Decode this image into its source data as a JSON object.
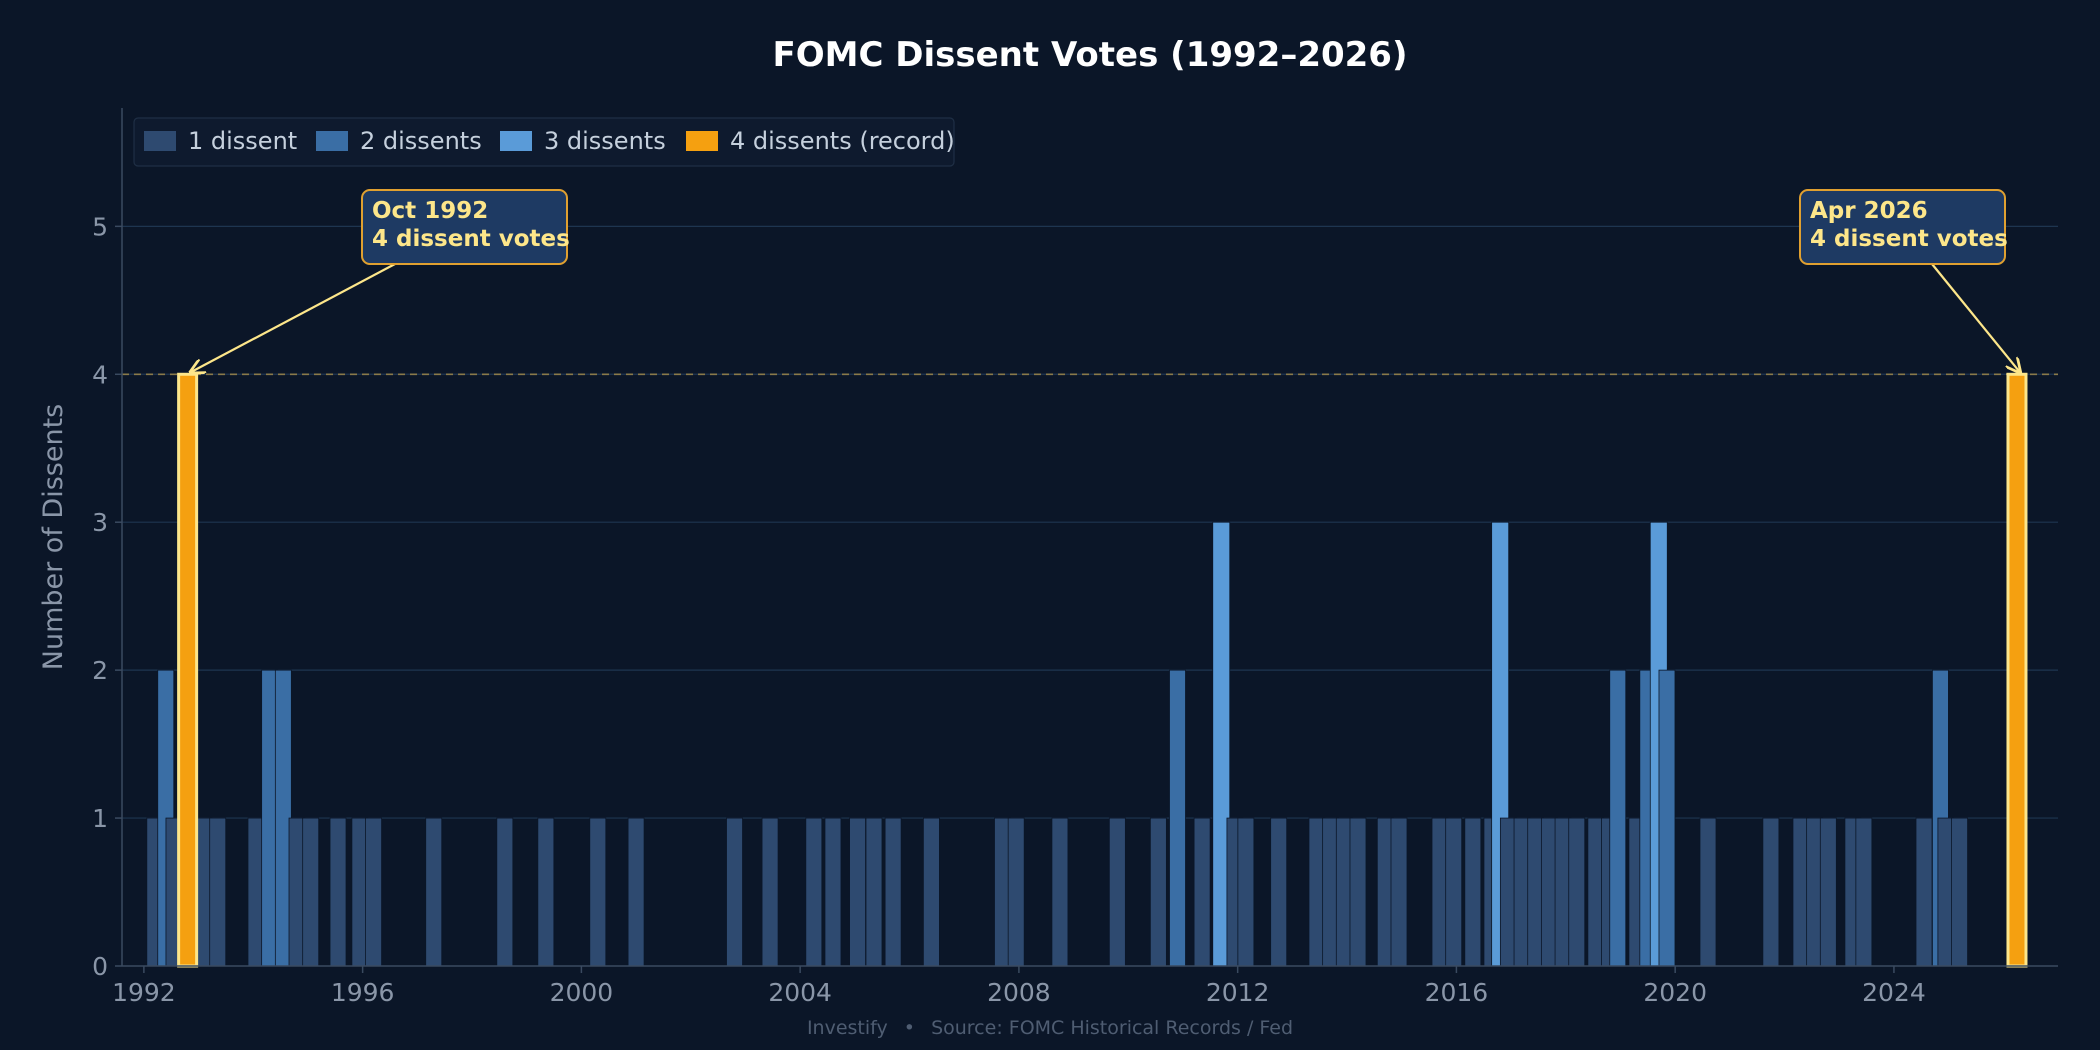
{
  "colors": {
    "background": "#0b1628",
    "one": "#2e4a70",
    "two": "#3a6ea5",
    "three": "#5a9bd8",
    "four": "#f5a010",
    "four_edge": "#fde68a",
    "grid": "#1e3550",
    "text": "#c5d0dd",
    "muted": "#8a96a8",
    "annotation_bg": "#1e3a63",
    "annotation_border": "#e0a030",
    "annotation_text": "#fde68a"
  },
  "chart_data": {
    "type": "bar",
    "title": "FOMC Dissent Votes (1992–2026)",
    "ylabel": "Number of Dissents",
    "xlabel": "",
    "xlim": [
      1991.6,
      2027.0
    ],
    "ylim": [
      0,
      5.8
    ],
    "x_ticks": [
      1992,
      1996,
      2000,
      2004,
      2008,
      2012,
      2016,
      2020,
      2024
    ],
    "x_tick_labels": [
      "1992",
      "1996",
      "2000",
      "2004",
      "2008",
      "2012",
      "2016",
      "2020",
      "2024"
    ],
    "y_ticks": [
      0,
      1,
      2,
      3,
      4,
      5
    ],
    "y_tick_labels": [
      "0",
      "1",
      "2",
      "3",
      "4",
      "5"
    ],
    "grid": true,
    "legend_position": "top-left",
    "legend": [
      "1 dissent",
      "2 dissents",
      "3 dissents",
      "4 dissents (record)"
    ],
    "reference_line": {
      "y": 4,
      "style": "dashed"
    },
    "series": [
      {
        "x": 1992.2,
        "y": 1
      },
      {
        "x": 1992.4,
        "y": 2
      },
      {
        "x": 1992.55,
        "y": 1
      },
      {
        "x": 1992.8,
        "y": 4
      },
      {
        "x": 1993.1,
        "y": 1
      },
      {
        "x": 1993.35,
        "y": 1
      },
      {
        "x": 1994.05,
        "y": 1
      },
      {
        "x": 1994.3,
        "y": 2
      },
      {
        "x": 1994.55,
        "y": 2
      },
      {
        "x": 1994.8,
        "y": 1
      },
      {
        "x": 1995.05,
        "y": 1
      },
      {
        "x": 1995.55,
        "y": 1
      },
      {
        "x": 1995.95,
        "y": 1
      },
      {
        "x": 1996.2,
        "y": 1
      },
      {
        "x": 1997.3,
        "y": 1
      },
      {
        "x": 1998.6,
        "y": 1
      },
      {
        "x": 1999.35,
        "y": 1
      },
      {
        "x": 2000.3,
        "y": 1
      },
      {
        "x": 2001.0,
        "y": 1
      },
      {
        "x": 2002.8,
        "y": 1
      },
      {
        "x": 2003.45,
        "y": 1
      },
      {
        "x": 2004.25,
        "y": 1
      },
      {
        "x": 2004.6,
        "y": 1
      },
      {
        "x": 2005.05,
        "y": 1
      },
      {
        "x": 2005.35,
        "y": 1
      },
      {
        "x": 2005.7,
        "y": 1
      },
      {
        "x": 2006.4,
        "y": 1
      },
      {
        "x": 2007.7,
        "y": 1
      },
      {
        "x": 2007.95,
        "y": 1
      },
      {
        "x": 2008.75,
        "y": 1
      },
      {
        "x": 2009.8,
        "y": 1
      },
      {
        "x": 2010.55,
        "y": 1
      },
      {
        "x": 2010.9,
        "y": 2
      },
      {
        "x": 2011.35,
        "y": 1
      },
      {
        "x": 2011.7,
        "y": 3
      },
      {
        "x": 2011.95,
        "y": 1
      },
      {
        "x": 2012.15,
        "y": 1
      },
      {
        "x": 2012.75,
        "y": 1
      },
      {
        "x": 2013.45,
        "y": 1
      },
      {
        "x": 2013.7,
        "y": 1
      },
      {
        "x": 2013.95,
        "y": 1
      },
      {
        "x": 2014.2,
        "y": 1
      },
      {
        "x": 2014.7,
        "y": 1
      },
      {
        "x": 2014.95,
        "y": 1
      },
      {
        "x": 2015.7,
        "y": 1
      },
      {
        "x": 2015.95,
        "y": 1
      },
      {
        "x": 2016.3,
        "y": 1
      },
      {
        "x": 2016.65,
        "y": 1
      },
      {
        "x": 2016.8,
        "y": 3
      },
      {
        "x": 2016.95,
        "y": 1
      },
      {
        "x": 2017.2,
        "y": 1
      },
      {
        "x": 2017.45,
        "y": 1
      },
      {
        "x": 2017.7,
        "y": 1
      },
      {
        "x": 2017.95,
        "y": 1
      },
      {
        "x": 2018.2,
        "y": 1
      },
      {
        "x": 2018.55,
        "y": 1
      },
      {
        "x": 2018.8,
        "y": 1
      },
      {
        "x": 2018.95,
        "y": 2
      },
      {
        "x": 2019.3,
        "y": 1
      },
      {
        "x": 2019.5,
        "y": 2
      },
      {
        "x": 2019.7,
        "y": 3
      },
      {
        "x": 2019.85,
        "y": 2
      },
      {
        "x": 2020.6,
        "y": 1
      },
      {
        "x": 2021.75,
        "y": 1
      },
      {
        "x": 2022.3,
        "y": 1
      },
      {
        "x": 2022.55,
        "y": 1
      },
      {
        "x": 2022.8,
        "y": 1
      },
      {
        "x": 2023.25,
        "y": 1
      },
      {
        "x": 2023.45,
        "y": 1
      },
      {
        "x": 2024.55,
        "y": 1
      },
      {
        "x": 2024.85,
        "y": 2
      },
      {
        "x": 2024.95,
        "y": 1
      },
      {
        "x": 2025.2,
        "y": 1
      },
      {
        "x": 2026.25,
        "y": 4
      }
    ],
    "annotations": [
      {
        "text_line1": "Oct 1992",
        "text_line2": "4 dissent votes",
        "x": 1992.8,
        "y": 4,
        "box_x": 1996.4,
        "box_y": 5.0
      },
      {
        "text_line1": "Apr 2026",
        "text_line2": "4 dissent votes",
        "x": 2026.25,
        "y": 4,
        "box_x": 2024.9,
        "box_y": 5.0
      }
    ]
  },
  "footer": {
    "brand": "Investify",
    "separator": "•",
    "source": "Source: FOMC Historical Records / Fed"
  }
}
